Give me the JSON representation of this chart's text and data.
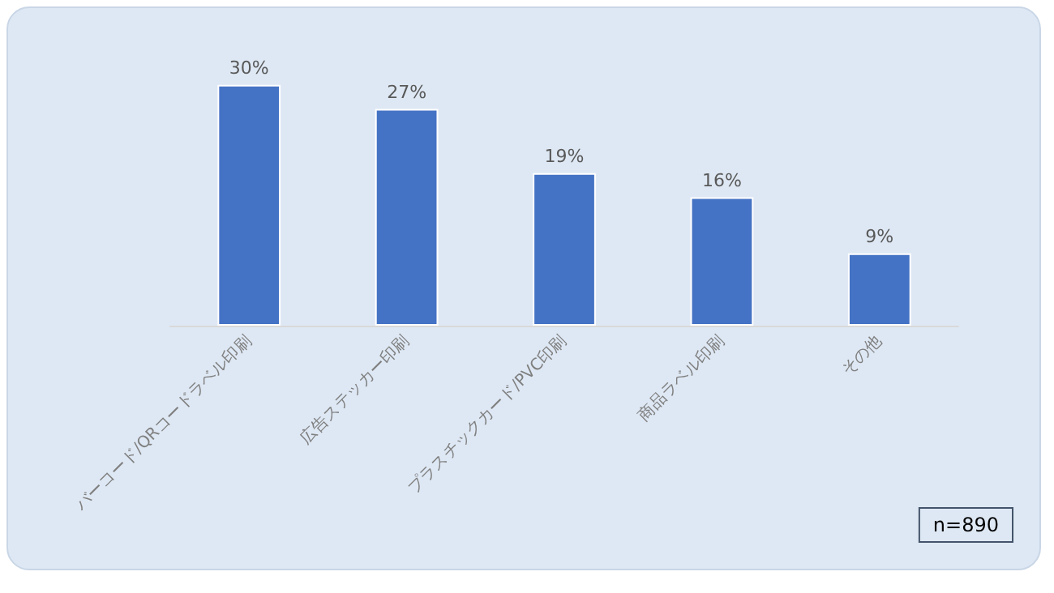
{
  "chart_data": {
    "type": "bar",
    "categories": [
      "バーコード/QRコードラベル印刷",
      "広告ステッカー印刷",
      "プラスチックカード/PVC印刷",
      "商品ラベル印刷",
      "その他"
    ],
    "values": [
      30,
      27,
      19,
      16,
      9
    ],
    "value_labels": [
      "30%",
      "27%",
      "19%",
      "16%",
      "9%"
    ],
    "color": "#4472c4",
    "annotations": [
      "n=890"
    ]
  }
}
